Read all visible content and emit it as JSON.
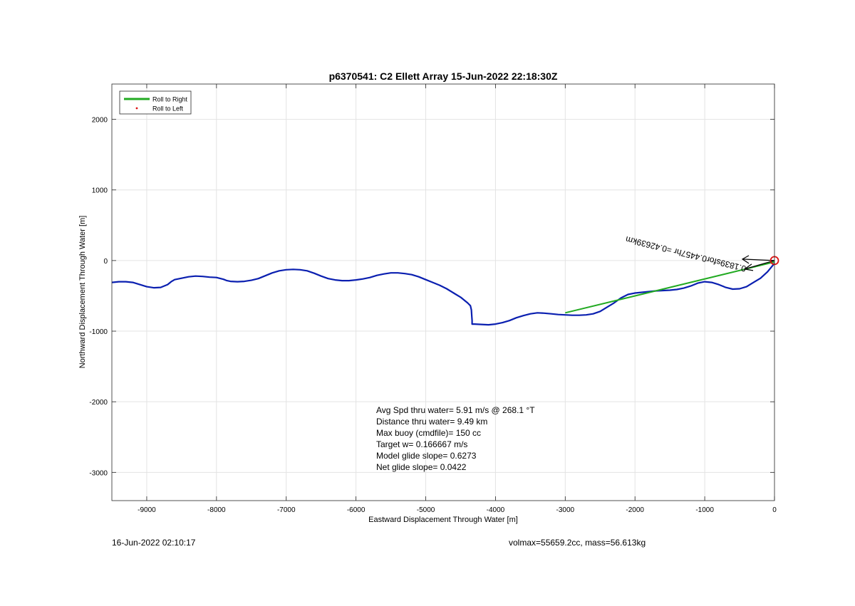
{
  "chart_data": {
    "type": "line",
    "title": "p6370541: C2 Ellett Array 15-Jun-2022 22:18:30Z",
    "xlabel": "Eastward Displacement Through Water [m]",
    "ylabel": "Northward Displacement Through Water [m]",
    "xlim": [
      -9500,
      0
    ],
    "ylim": [
      -3400,
      2500
    ],
    "xticks": [
      -9000,
      -8000,
      -7000,
      -6000,
      -5000,
      -4000,
      -3000,
      -2000,
      -1000,
      0
    ],
    "yticks": [
      -3000,
      -2000,
      -1000,
      0,
      1000,
      2000
    ],
    "grid": true,
    "legend": {
      "placement": "top-left",
      "entries": [
        {
          "label": "Roll to Right",
          "color": "#22aa22",
          "style": "line"
        },
        {
          "label": "Roll to Left",
          "color": "#dd1111",
          "style": "dot"
        }
      ]
    },
    "series": [
      {
        "color": "#0a1fb0",
        "x": [
          -9500,
          -9400,
          -9300,
          -9200,
          -9100,
          -9000,
          -8900,
          -8800,
          -8700,
          -8650,
          -8600,
          -8500,
          -8400,
          -8300,
          -8200,
          -8100,
          -8000,
          -7900,
          -7850,
          -7800,
          -7700,
          -7600,
          -7500,
          -7400,
          -7300,
          -7200,
          -7100,
          -7000,
          -6900,
          -6800,
          -6700,
          -6600,
          -6500,
          -6400,
          -6300,
          -6200,
          -6100,
          -6000,
          -5900,
          -5800,
          -5700,
          -5600,
          -5500,
          -5400,
          -5300,
          -5200,
          -5100,
          -5000,
          -4900,
          -4800,
          -4700,
          -4600,
          -4500,
          -4450,
          -4400,
          -4360,
          -4345,
          -4340,
          -4335,
          -4335,
          -4300,
          -4200,
          -4100,
          -4000,
          -3900,
          -3800,
          -3700,
          -3600,
          -3500,
          -3400,
          -3300,
          -3200,
          -3100,
          -3000,
          -2900,
          -2800,
          -2700,
          -2600,
          -2500,
          -2400,
          -2300,
          -2200,
          -2100,
          -2000,
          -1900,
          -1800,
          -1700,
          -1600,
          -1500,
          -1400,
          -1300,
          -1200,
          -1100,
          -1000,
          -900,
          -800,
          -700,
          -600,
          -500,
          -400,
          -300,
          -200,
          -100,
          0
        ],
        "y": [
          -310,
          -300,
          -300,
          -310,
          -340,
          -370,
          -385,
          -380,
          -340,
          -300,
          -270,
          -250,
          -230,
          -220,
          -225,
          -235,
          -240,
          -265,
          -285,
          -295,
          -300,
          -295,
          -280,
          -255,
          -215,
          -175,
          -145,
          -130,
          -125,
          -130,
          -145,
          -180,
          -220,
          -255,
          -275,
          -285,
          -285,
          -275,
          -260,
          -240,
          -210,
          -190,
          -175,
          -175,
          -185,
          -200,
          -230,
          -270,
          -310,
          -350,
          -400,
          -460,
          -520,
          -560,
          -600,
          -640,
          -700,
          -780,
          -850,
          -900,
          -900,
          -905,
          -910,
          -900,
          -880,
          -850,
          -810,
          -780,
          -755,
          -740,
          -745,
          -755,
          -765,
          -770,
          -775,
          -775,
          -770,
          -755,
          -720,
          -660,
          -600,
          -530,
          -480,
          -460,
          -450,
          -440,
          -430,
          -425,
          -420,
          -410,
          -390,
          -360,
          -320,
          -300,
          -310,
          -340,
          -380,
          -405,
          -400,
          -370,
          -310,
          -250,
          -160,
          -40
        ]
      },
      {
        "color": "#22aa22",
        "x": [
          -3000,
          0
        ],
        "y": [
          -740,
          -20
        ]
      }
    ],
    "annotations": [
      {
        "text": "0.1839sfor0.4457hr =0.42639km",
        "x": -400,
        "y": -80,
        "rotation_deg": 194,
        "color": "#000000"
      }
    ],
    "stats": [
      "Avg Spd thru water=  5.91 m/s @ 268.1 °T",
      "Distance thru water=  9.49 km",
      "Max buoy (cmdfile)= 150 cc",
      "Target w= 0.166667 m/s",
      "Model glide slope= 0.6273",
      "Net glide slope= 0.0422"
    ]
  },
  "footer": {
    "left": "16-Jun-2022 02:10:17",
    "right": "volmax=55659.2cc, mass=56.613kg"
  }
}
